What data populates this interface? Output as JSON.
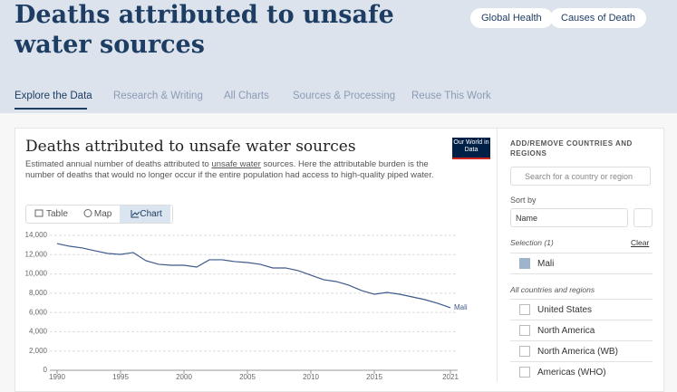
{
  "header": {
    "title": "Deaths attributed to unsafe water sources",
    "tags": [
      "Global Health",
      "Causes of Death"
    ]
  },
  "nav": [
    "Explore the Data",
    "Research & Writing",
    "All Charts",
    "Sources & Processing",
    "Reuse This Work"
  ],
  "card": {
    "title": "Deaths attributed to unsafe water sources",
    "subtitle": [
      "Estimated annual number of deaths attributed to ",
      "unsafe water",
      " sources. Here the attributable burden is the number of deaths that would no longer occur if the entire population had access to high-quality piped water."
    ],
    "logo": "Our World in Data",
    "tabs": [
      "Table",
      "Map",
      "Chart"
    ]
  },
  "chart_data": {
    "type": "line",
    "xlim": [
      1990,
      2021
    ],
    "xticks": [
      1990,
      1995,
      2000,
      2005,
      2010,
      2015,
      2021
    ],
    "ylim": [
      0,
      14000
    ],
    "yticks": [
      0,
      {
        "value": 2000,
        "label": "2,000"
      },
      {
        "value": 4000,
        "label": "4,000"
      },
      {
        "value": 6000,
        "label": "6,000"
      },
      {
        "value": 8000,
        "label": "8,000"
      },
      {
        "value": 10000,
        "label": "10,000"
      },
      {
        "value": 12000,
        "label": "12,000"
      },
      {
        "value": 14000,
        "label": "14,000"
      }
    ],
    "grid": true,
    "x": [
      1990,
      1991,
      1992,
      1993,
      1994,
      1995,
      1996,
      1997,
      1998,
      1999,
      2000,
      2001,
      2002,
      2003,
      2004,
      2005,
      2006,
      2007,
      2008,
      2009,
      2010,
      2011,
      2012,
      2013,
      2014,
      2015,
      2016,
      2017,
      2018,
      2019,
      2020,
      2021
    ],
    "series": [
      {
        "name": "Mali",
        "color": "#3d5a8a",
        "values": [
          13150,
          12870,
          12690,
          12400,
          12120,
          12030,
          12220,
          11370,
          11000,
          10900,
          10900,
          10710,
          11470,
          11470,
          11280,
          11180,
          11000,
          10620,
          10620,
          10340,
          9870,
          9400,
          9210,
          8830,
          8270,
          7890,
          8080,
          7890,
          7610,
          7330,
          6950,
          6490
        ]
      }
    ]
  },
  "sidebar": {
    "heading": "ADD/REMOVE COUNTRIES AND REGIONS",
    "search": "Search for a country or region",
    "sort_label": "Sort by",
    "sort_value": "Name",
    "selection": "Selection (1)",
    "clear": "Clear",
    "selected": [
      "Mali"
    ],
    "all_label": "All countries and regions",
    "entities": [
      "United States",
      "North America",
      "North America (WB)",
      "Americas (WHO)"
    ]
  }
}
